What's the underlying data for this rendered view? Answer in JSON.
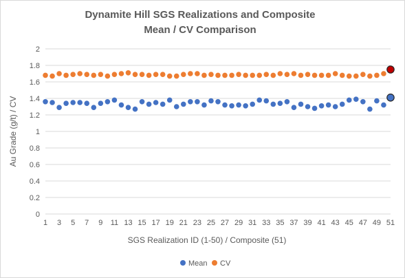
{
  "chart_data": {
    "type": "scatter",
    "title": [
      "Dynamite Hill SGS Realizations and Composite",
      "Mean / CV Comparison"
    ],
    "xlabel": "SGS Realization ID (1-50) / Composite (51)",
    "ylabel": "Au Grade (g/t) / CV",
    "xlim": [
      1,
      51
    ],
    "ylim": [
      0,
      2
    ],
    "yticks": [
      "0",
      "0.2",
      "0.4",
      "0.6",
      "0.8",
      "1",
      "1.2",
      "1.4",
      "1.6",
      "1.8",
      "2"
    ],
    "xticks": [
      "1",
      "3",
      "5",
      "7",
      "9",
      "11",
      "13",
      "15",
      "17",
      "19",
      "21",
      "23",
      "25",
      "27",
      "29",
      "31",
      "33",
      "35",
      "37",
      "39",
      "41",
      "43",
      "45",
      "47",
      "49",
      "51"
    ],
    "grid": "horizontal",
    "legend_position": "bottom",
    "series": [
      {
        "name": "Mean",
        "color": "#4472c4",
        "x": [
          1,
          2,
          3,
          4,
          5,
          6,
          7,
          8,
          9,
          10,
          11,
          12,
          13,
          14,
          15,
          16,
          17,
          18,
          19,
          20,
          21,
          22,
          23,
          24,
          25,
          26,
          27,
          28,
          29,
          30,
          31,
          32,
          33,
          34,
          35,
          36,
          37,
          38,
          39,
          40,
          41,
          42,
          43,
          44,
          45,
          46,
          47,
          48,
          49,
          50
        ],
        "values": [
          1.36,
          1.35,
          1.29,
          1.34,
          1.35,
          1.35,
          1.34,
          1.29,
          1.34,
          1.36,
          1.38,
          1.32,
          1.29,
          1.27,
          1.36,
          1.33,
          1.35,
          1.33,
          1.38,
          1.3,
          1.33,
          1.36,
          1.36,
          1.32,
          1.37,
          1.36,
          1.32,
          1.31,
          1.32,
          1.31,
          1.33,
          1.38,
          1.37,
          1.33,
          1.34,
          1.36,
          1.29,
          1.33,
          1.3,
          1.28,
          1.31,
          1.32,
          1.3,
          1.33,
          1.38,
          1.39,
          1.36,
          1.27,
          1.37,
          1.32
        ]
      },
      {
        "name": "CV",
        "color": "#ed7d31",
        "x": [
          1,
          2,
          3,
          4,
          5,
          6,
          7,
          8,
          9,
          10,
          11,
          12,
          13,
          14,
          15,
          16,
          17,
          18,
          19,
          20,
          21,
          22,
          23,
          24,
          25,
          26,
          27,
          28,
          29,
          30,
          31,
          32,
          33,
          34,
          35,
          36,
          37,
          38,
          39,
          40,
          41,
          42,
          43,
          44,
          45,
          46,
          47,
          48,
          49,
          50
        ],
        "values": [
          1.68,
          1.67,
          1.7,
          1.68,
          1.69,
          1.7,
          1.69,
          1.68,
          1.69,
          1.67,
          1.69,
          1.7,
          1.71,
          1.69,
          1.69,
          1.68,
          1.69,
          1.69,
          1.67,
          1.67,
          1.69,
          1.7,
          1.7,
          1.68,
          1.69,
          1.68,
          1.68,
          1.68,
          1.69,
          1.68,
          1.68,
          1.68,
          1.69,
          1.68,
          1.7,
          1.69,
          1.7,
          1.68,
          1.69,
          1.68,
          1.68,
          1.68,
          1.7,
          1.68,
          1.67,
          1.67,
          1.69,
          1.67,
          1.68,
          1.7
        ]
      }
    ],
    "composite": [
      {
        "series": "Mean",
        "x": 51,
        "value": 1.41,
        "color": "#4472c4"
      },
      {
        "series": "CV",
        "x": 51,
        "value": 1.75,
        "color": "#c00000"
      }
    ]
  }
}
